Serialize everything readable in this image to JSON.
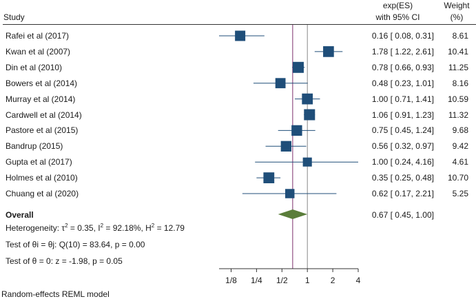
{
  "header": {
    "study_label": "Study",
    "es_label_line1": "exp(ES)",
    "es_label_line2": "with 95% CI",
    "weight_label_line1": "Weight",
    "weight_label_line2": "(%)"
  },
  "chart_data": {
    "type": "forest",
    "x_scale": "log2",
    "xlim": [
      0.09,
      4
    ],
    "x_ticks": [
      {
        "value": 0.125,
        "label": "1/8"
      },
      {
        "value": 0.25,
        "label": "1/4"
      },
      {
        "value": 0.5,
        "label": "1/2"
      },
      {
        "value": 1,
        "label": "1"
      },
      {
        "value": 2,
        "label": "2"
      },
      {
        "value": 4,
        "label": "4"
      }
    ],
    "null_line": 1,
    "overall_line": 0.67,
    "colors": {
      "marker": "#1f4e79",
      "ci_line": "#1f4e79",
      "diamond": "#5a7d3a",
      "overall_line": "#7b2d6b",
      "null_line": "#888888"
    },
    "studies": [
      {
        "name": "Rafei et al (2017)",
        "es": 0.16,
        "lo": 0.08,
        "hi": 0.31,
        "es_text": "0.16 [ 0.08,  0.31]",
        "weight": "8.61",
        "w": 8.61
      },
      {
        "name": "Kwan et al (2007)",
        "es": 1.78,
        "lo": 1.22,
        "hi": 2.61,
        "es_text": "1.78 [ 1.22,  2.61]",
        "weight": "10.41",
        "w": 10.41
      },
      {
        "name": "Din et al (2010)",
        "es": 0.78,
        "lo": 0.66,
        "hi": 0.93,
        "es_text": "0.78 [ 0.66,  0.93]",
        "weight": "11.25",
        "w": 11.25
      },
      {
        "name": "Bowers et al (2014)",
        "es": 0.48,
        "lo": 0.23,
        "hi": 1.01,
        "es_text": "0.48 [ 0.23,  1.01]",
        "weight": "8.16",
        "w": 8.16
      },
      {
        "name": "Murray et al (2014)",
        "es": 1.0,
        "lo": 0.71,
        "hi": 1.41,
        "es_text": "1.00 [ 0.71,  1.41]",
        "weight": "10.59",
        "w": 10.59
      },
      {
        "name": "Cardwell et al (2014)",
        "es": 1.06,
        "lo": 0.91,
        "hi": 1.23,
        "es_text": "1.06 [ 0.91,  1.23]",
        "weight": "11.32",
        "w": 11.32
      },
      {
        "name": "Pastore et al (2015)",
        "es": 0.75,
        "lo": 0.45,
        "hi": 1.24,
        "es_text": "0.75 [ 0.45,  1.24]",
        "weight": "9.68",
        "w": 9.68
      },
      {
        "name": "Bandrup (2015)",
        "es": 0.56,
        "lo": 0.32,
        "hi": 0.97,
        "es_text": "0.56 [ 0.32,  0.97]",
        "weight": "9.42",
        "w": 9.42
      },
      {
        "name": "Gupta et al (2017)",
        "es": 1.0,
        "lo": 0.24,
        "hi": 4.16,
        "es_text": "1.00 [ 0.24,  4.16]",
        "weight": "4.61",
        "w": 4.61
      },
      {
        "name": "Holmes et al (2010)",
        "es": 0.35,
        "lo": 0.25,
        "hi": 0.48,
        "es_text": "0.35 [ 0.25,  0.48]",
        "weight": "10.70",
        "w": 10.7
      },
      {
        "name": "Chuang et al (2020)",
        "es": 0.62,
        "lo": 0.17,
        "hi": 2.21,
        "es_text": "0.62 [ 0.17,  2.21]",
        "weight": "5.25",
        "w": 5.25
      }
    ],
    "overall": {
      "name": "Overall",
      "es": 0.67,
      "lo": 0.45,
      "hi": 1.0,
      "es_text": "0.67 [ 0.45,  1.00]"
    },
    "footnotes": {
      "heterogeneity_prefix": "Heterogeneity: τ",
      "heterogeneity_tau_rest": " = 0.35, I",
      "heterogeneity_i_rest": " = 92.18%, H",
      "heterogeneity_h_rest": " = 12.79",
      "sup": "2",
      "test_theta_i": "Test of θi = θj: Q(10) = 83.64, p = 0.00",
      "test_theta_0": "Test of θ = 0: z = -1.98, p = 0.05",
      "model": "Random-effects REML model"
    }
  }
}
